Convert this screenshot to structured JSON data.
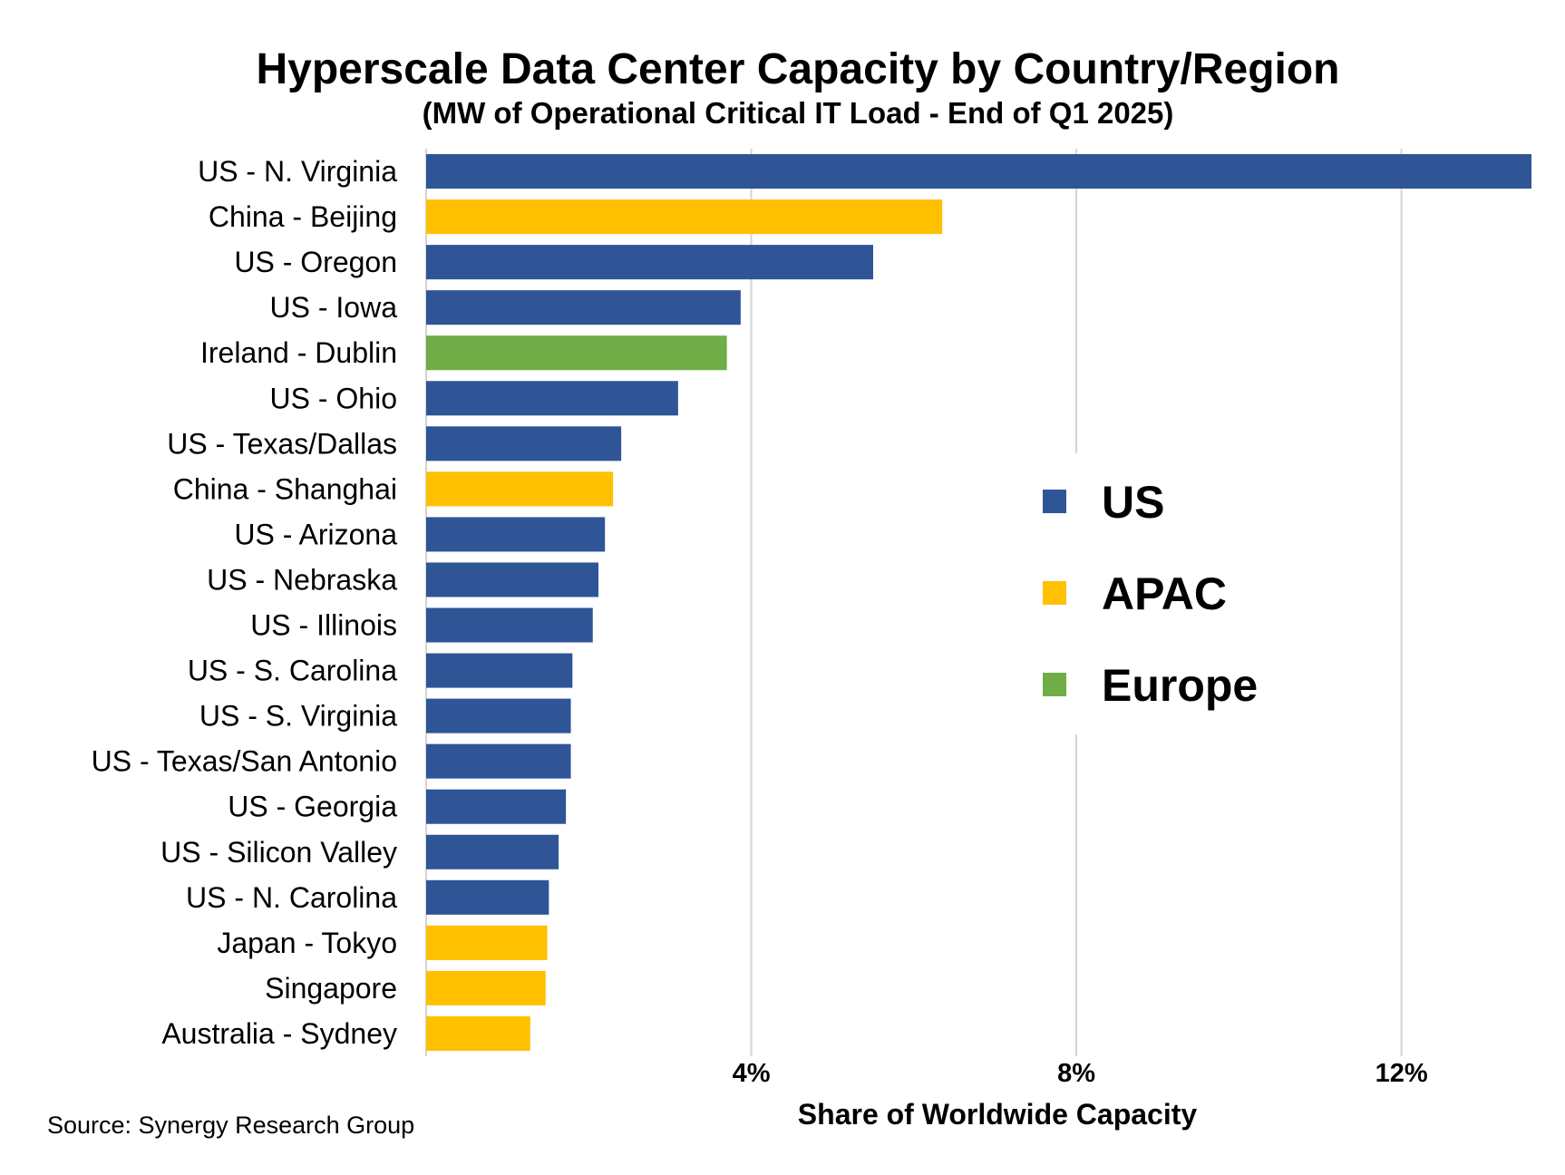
{
  "chart_data": {
    "type": "bar",
    "orientation": "horizontal",
    "title": "Hyperscale Data Center Capacity by Country/Region",
    "subtitle": "(MW of Operational Critical IT Load - End of Q1 2025)",
    "xlabel": "Share of Worldwide Capacity",
    "ylabel": "",
    "xlim": [
      0,
      13.6
    ],
    "xticks": [
      {
        "value": 4,
        "label": "4%"
      },
      {
        "value": 8,
        "label": "8%"
      },
      {
        "value": 12,
        "label": "12%"
      }
    ],
    "grid": "vertical",
    "legend_placement": "right-center",
    "legend": [
      {
        "name": "US",
        "color": "#2f5597"
      },
      {
        "name": "APAC",
        "color": "#ffc000"
      },
      {
        "name": "Europe",
        "color": "#70ad47"
      }
    ],
    "categories": [
      "US - N. Virginia",
      "China - Beijing",
      "US - Oregon",
      "US - Iowa",
      "Ireland - Dublin",
      "US - Ohio",
      "US - Texas/Dallas",
      "China - Shanghai",
      "US - Arizona",
      "US - Nebraska",
      "US - Illinois",
      "US - S. Carolina",
      "US - S. Virginia",
      "US - Texas/San Antonio",
      "US - Georgia",
      "US - Silicon Valley",
      "US - N. Carolina",
      "Japan - Tokyo",
      "Singapore",
      "Australia - Sydney"
    ],
    "values": [
      13.6,
      6.35,
      5.5,
      3.87,
      3.7,
      3.1,
      2.4,
      2.3,
      2.2,
      2.12,
      2.05,
      1.8,
      1.78,
      1.78,
      1.72,
      1.63,
      1.51,
      1.49,
      1.47,
      1.28
    ],
    "groups": [
      "US",
      "APAC",
      "US",
      "US",
      "Europe",
      "US",
      "US",
      "APAC",
      "US",
      "US",
      "US",
      "US",
      "US",
      "US",
      "US",
      "US",
      "US",
      "APAC",
      "APAC",
      "APAC"
    ]
  },
  "source_text": "Source: Synergy Research Group"
}
